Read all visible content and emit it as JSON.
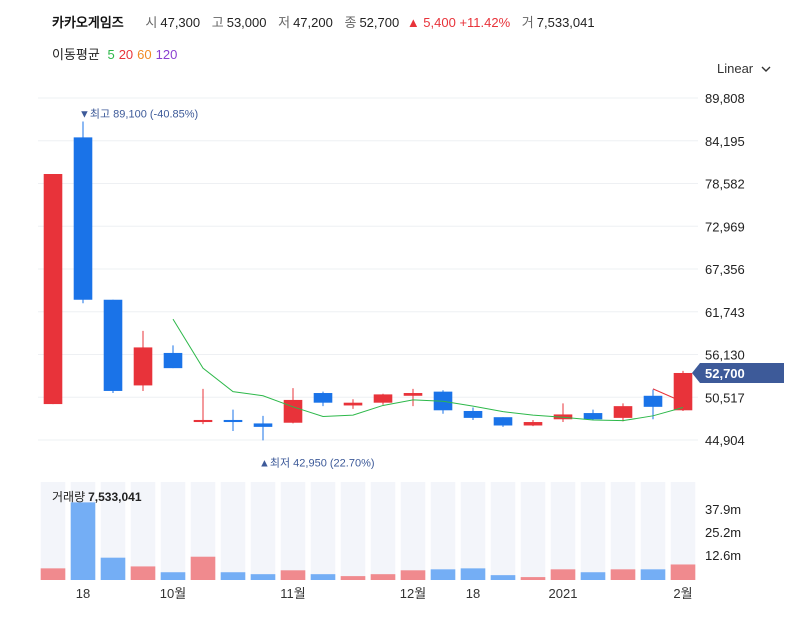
{
  "header": {
    "name": "카카오게임즈",
    "open_label": "시",
    "open": "47,300",
    "high_label": "고",
    "high": "53,000",
    "low_label": "저",
    "low": "47,200",
    "close_label": "종",
    "close": "52,700",
    "change": "▲ 5,400 +11.42%",
    "volume_label": "거",
    "volume": "7,533,041"
  },
  "moving_avg": {
    "label": "이동평균",
    "periods": [
      {
        "text": "5",
        "color": "#2db84a"
      },
      {
        "text": "20",
        "color": "#e8333a"
      },
      {
        "text": "60",
        "color": "#f08a24"
      },
      {
        "text": "120",
        "color": "#8a3fd1"
      }
    ]
  },
  "scale_label": "Linear",
  "colors": {
    "up": "#e8333a",
    "down": "#1a73e8",
    "ma5": "#2db84a",
    "ma20": "#e8333a",
    "price_tag": "#3d5a99"
  },
  "chart_data": {
    "type": "candlestick",
    "y_ticks": [
      "89,808",
      "84,195",
      "78,582",
      "72,969",
      "67,356",
      "61,743",
      "56,130",
      "50,517",
      "44,904"
    ],
    "x_labels": [
      "18",
      "10월",
      "11월",
      "12월",
      "18",
      "2021",
      "2월"
    ],
    "current_price_tag": "52,700",
    "high_note": "▼최고 89,100 (-40.85%)",
    "low_note": "▲최저 42,950 (22.70%)",
    "ylim": [
      43000,
      92500
    ],
    "candles": [
      {
        "o": 48200,
        "h": 81500,
        "l": 48200,
        "c": 81500
      },
      {
        "o": 86800,
        "h": 89100,
        "l": 62800,
        "c": 63300
      },
      {
        "o": 63300,
        "h": 63300,
        "l": 49800,
        "c": 50100
      },
      {
        "o": 50900,
        "h": 58800,
        "l": 50100,
        "c": 56400
      },
      {
        "o": 55600,
        "h": 56700,
        "l": 53400,
        "c": 53400
      },
      {
        "o": 45600,
        "h": 50400,
        "l": 45300,
        "c": 45900
      },
      {
        "o": 45900,
        "h": 47400,
        "l": 44300,
        "c": 45600
      },
      {
        "o": 45400,
        "h": 46500,
        "l": 42950,
        "c": 44900
      },
      {
        "o": 45500,
        "h": 50500,
        "l": 45400,
        "c": 48800
      },
      {
        "o": 49800,
        "h": 50000,
        "l": 47900,
        "c": 48400
      },
      {
        "o": 48000,
        "h": 48900,
        "l": 47500,
        "c": 48400
      },
      {
        "o": 48400,
        "h": 49700,
        "l": 48100,
        "c": 49600
      },
      {
        "o": 49400,
        "h": 50400,
        "l": 47900,
        "c": 49800
      },
      {
        "o": 50000,
        "h": 50200,
        "l": 46800,
        "c": 47300
      },
      {
        "o": 47200,
        "h": 47700,
        "l": 45900,
        "c": 46200
      },
      {
        "o": 46300,
        "h": 46300,
        "l": 44900,
        "c": 45100
      },
      {
        "o": 45100,
        "h": 45900,
        "l": 45000,
        "c": 45600
      },
      {
        "o": 46000,
        "h": 48300,
        "l": 45600,
        "c": 46700
      },
      {
        "o": 46900,
        "h": 47400,
        "l": 45900,
        "c": 46000
      },
      {
        "o": 46200,
        "h": 48300,
        "l": 45700,
        "c": 47900
      },
      {
        "o": 49400,
        "h": 50300,
        "l": 46000,
        "c": 47800
      },
      {
        "o": 47300,
        "h": 53000,
        "l": 47200,
        "c": 52700
      }
    ],
    "ma5": [
      null,
      null,
      null,
      null,
      60500,
      53400,
      50000,
      49400,
      47800,
      46400,
      46600,
      48000,
      48800,
      48600,
      47900,
      47100,
      46600,
      46300,
      45900,
      45800,
      46500,
      47700
    ],
    "ma20_tail": [
      null,
      null,
      null,
      null,
      null,
      null,
      null,
      null,
      null,
      null,
      null,
      null,
      null,
      null,
      null,
      null,
      null,
      null,
      null,
      null,
      50400,
      48500
    ],
    "volume_label": "거래량",
    "volume_value": "7,533,041",
    "volume_ticks": [
      "37.9m",
      "25.2m",
      "12.6m"
    ],
    "volume_max": 50.5,
    "volumes": [
      6.0,
      40.0,
      11.5,
      7.0,
      4.0,
      12.0,
      4.0,
      3.0,
      5.0,
      3.0,
      2.0,
      3.0,
      5.0,
      5.5,
      6.0,
      2.5,
      1.5,
      5.5,
      4.0,
      5.5,
      5.5,
      8.0
    ]
  }
}
